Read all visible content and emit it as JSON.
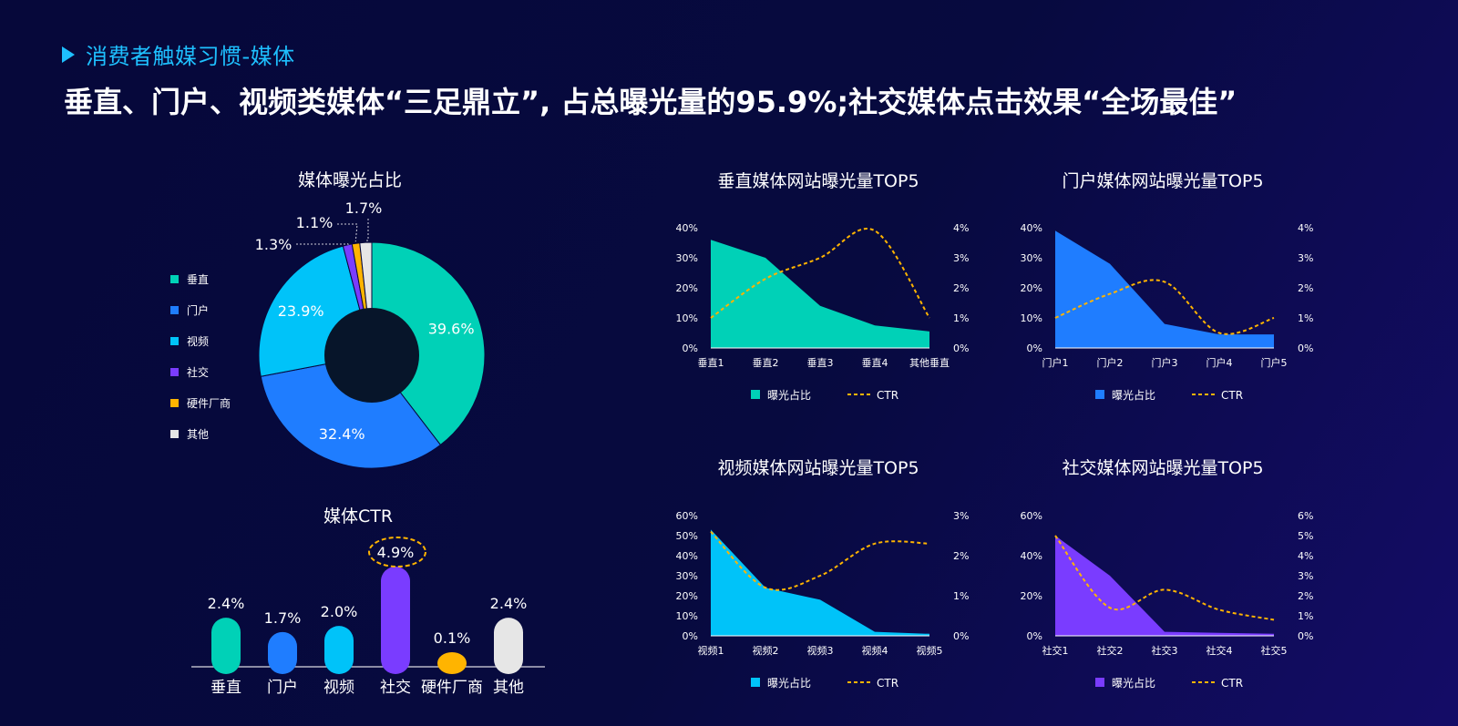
{
  "section_title": "消费者触媒习惯-媒体",
  "headline": "垂直、门户、视频类媒体“三足鼎立”, 占总曝光量的95.9%;社交媒体点击效果“全场最佳”",
  "colors": {
    "vertical": "#00d1b7",
    "portal": "#1f7dff",
    "video": "#00c3f9",
    "social": "#7a3cff",
    "hardware": "#ffb400",
    "other": "#e6e6e6",
    "ctr_line": "#ffb400",
    "donut_hole": "#07152a"
  },
  "donut": {
    "title": "媒体曝光占比",
    "legend": [
      {
        "label": "垂直",
        "color": "#00d1b7"
      },
      {
        "label": "门户",
        "color": "#1f7dff"
      },
      {
        "label": "视频",
        "color": "#00c3f9"
      },
      {
        "label": "社交",
        "color": "#7a3cff"
      },
      {
        "label": "硬件厂商",
        "color": "#ffb400"
      },
      {
        "label": "其他",
        "color": "#e6e6e6"
      }
    ]
  },
  "ctr_bars": {
    "title": "媒体CTR"
  },
  "area_charts": {
    "legend_area": "曝光占比",
    "legend_line": "CTR"
  },
  "chart_data": [
    {
      "type": "pie",
      "title": "媒体曝光占比",
      "categories": [
        "垂直",
        "门户",
        "视频",
        "社交",
        "硬件厂商",
        "其他"
      ],
      "values": [
        39.6,
        32.4,
        23.9,
        1.3,
        1.1,
        1.7
      ],
      "labels": [
        "39.6%",
        "32.4%",
        "23.9%",
        "1.3%",
        "1.1%",
        "1.7%"
      ],
      "colors": [
        "#00d1b7",
        "#1f7dff",
        "#00c3f9",
        "#7a3cff",
        "#ffb400",
        "#e6e6e6"
      ],
      "legend": "left"
    },
    {
      "type": "bar",
      "title": "媒体CTR",
      "categories": [
        "垂直",
        "门户",
        "视频",
        "社交",
        "硬件厂商",
        "其他"
      ],
      "values": [
        2.4,
        1.7,
        2.0,
        4.9,
        0.1,
        2.4
      ],
      "labels": [
        "2.4%",
        "1.7%",
        "2.0%",
        "4.9%",
        "0.1%",
        "2.4%"
      ],
      "colors": [
        "#00d1b7",
        "#1f7dff",
        "#00c3f9",
        "#7a3cff",
        "#ffb400",
        "#e6e6e6"
      ],
      "highlight": "社交"
    },
    {
      "type": "area",
      "title": "垂直媒体网站曝光量TOP5",
      "categories": [
        "垂直1",
        "垂直2",
        "垂直3",
        "垂直4",
        "其他垂直"
      ],
      "series": [
        {
          "name": "曝光占比",
          "values": [
            36,
            30,
            14,
            7.5,
            5.5
          ],
          "axis": "left"
        },
        {
          "name": "CTR",
          "values": [
            1.0,
            2.3,
            3.0,
            3.9,
            1.0
          ],
          "axis": "right"
        }
      ],
      "ylim_left": [
        0,
        40
      ],
      "yticks_left": [
        "0%",
        "10%",
        "20%",
        "30%",
        "40%"
      ],
      "ylim_right": [
        0,
        4
      ],
      "yticks_right": [
        "0%",
        "1%",
        "2%",
        "3%",
        "4%"
      ],
      "area_color": "#00d1b7"
    },
    {
      "type": "area",
      "title": "门户媒体网站曝光量TOP5",
      "categories": [
        "门户1",
        "门户2",
        "门户3",
        "门户4",
        "门户5"
      ],
      "series": [
        {
          "name": "曝光占比",
          "values": [
            39,
            28,
            8,
            4.5,
            4.5
          ],
          "axis": "left"
        },
        {
          "name": "CTR",
          "values": [
            1.0,
            1.8,
            2.2,
            0.5,
            1.0
          ],
          "axis": "right"
        }
      ],
      "ylim_left": [
        0,
        40
      ],
      "yticks_left": [
        "0%",
        "10%",
        "20%",
        "30%",
        "40%"
      ],
      "ylim_right": [
        0,
        4
      ],
      "yticks_right": [
        "0%",
        "1%",
        "2%",
        "3%",
        "4%"
      ],
      "area_color": "#1f7dff"
    },
    {
      "type": "area",
      "title": "视频媒体网站曝光量TOP5",
      "categories": [
        "视频1",
        "视频2",
        "视频3",
        "视频4",
        "视频5"
      ],
      "series": [
        {
          "name": "曝光占比",
          "values": [
            53,
            24,
            18,
            2,
            1
          ],
          "axis": "left"
        },
        {
          "name": "CTR",
          "values": [
            2.6,
            1.2,
            1.5,
            2.3,
            2.3
          ],
          "axis": "right"
        }
      ],
      "ylim_left": [
        0,
        60
      ],
      "yticks_left": [
        "0%",
        "10%",
        "20%",
        "30%",
        "40%",
        "50%",
        "60%"
      ],
      "ylim_right": [
        0,
        3
      ],
      "yticks_right": [
        "0%",
        "1%",
        "2%",
        "3%"
      ],
      "area_color": "#00c3f9"
    },
    {
      "type": "area",
      "title": "社交媒体网站曝光量TOP5",
      "categories": [
        "社交1",
        "社交2",
        "社交3",
        "社交4",
        "社交5"
      ],
      "series": [
        {
          "name": "曝光占比",
          "values": [
            50,
            30,
            2,
            1.5,
            1
          ],
          "axis": "left"
        },
        {
          "name": "CTR",
          "values": [
            5.0,
            1.4,
            2.3,
            1.3,
            0.8
          ],
          "axis": "right"
        }
      ],
      "ylim_left": [
        0,
        60
      ],
      "yticks_left": [
        "0%",
        "20%",
        "40%",
        "60%"
      ],
      "ylim_right": [
        0,
        6
      ],
      "yticks_right": [
        "0%",
        "1%",
        "2%",
        "3%",
        "4%",
        "5%",
        "6%"
      ],
      "area_color": "#7a3cff"
    }
  ]
}
